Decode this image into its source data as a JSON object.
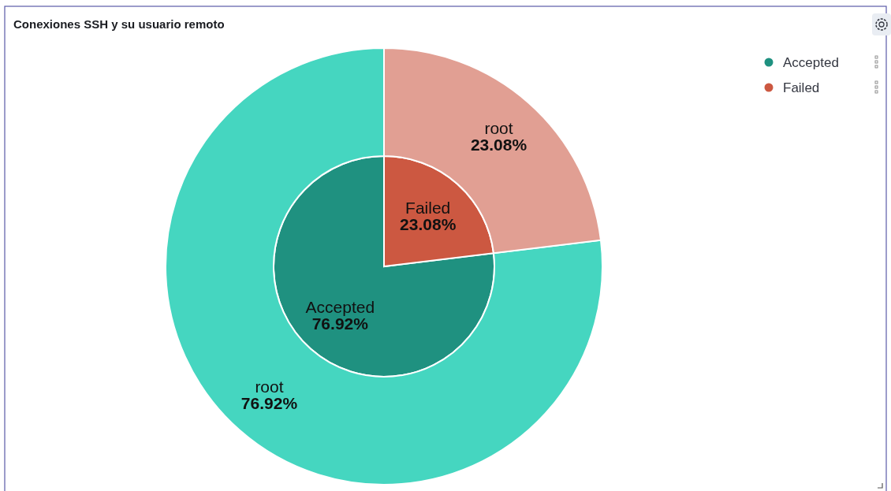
{
  "chart_data": [
    {
      "type": "pie",
      "title": "Conexiones SSH y su usuario remoto",
      "categories": [
        "Accepted",
        "Failed"
      ],
      "values": [
        76.92,
        23.08
      ],
      "colors": [
        "#1f9180",
        "#cc5841"
      ],
      "value_labels": [
        "76.92%",
        "23.08%"
      ],
      "legend": "top right"
    },
    {
      "type": "donut",
      "categories": [
        "root",
        "root"
      ],
      "values": [
        76.92,
        23.08
      ],
      "colors": [
        "#45d6c0",
        "#e19f93"
      ],
      "value_labels": [
        "76.92%",
        "23.08%"
      ]
    }
  ]
}
